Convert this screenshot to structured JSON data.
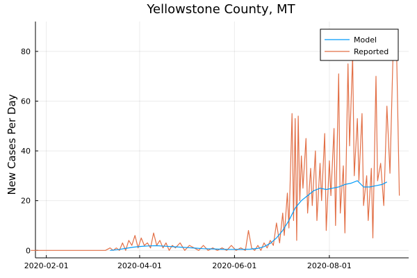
{
  "chart_data": {
    "type": "line",
    "title": "Yellowstone County, MT",
    "xlabel": "",
    "ylabel": "New Cases Per Day",
    "x_axis": "date",
    "xlim": [
      "2020-01-25",
      "2020-09-21"
    ],
    "ylim": [
      -3,
      92
    ],
    "x_ticks": [
      "2020-02-01",
      "2020-04-01",
      "2020-06-01",
      "2020-08-01"
    ],
    "y_ticks": [
      0,
      20,
      40,
      60,
      80
    ],
    "grid": true,
    "legend_position": "top-right",
    "series": [
      {
        "name": "Model",
        "color": "#009af9",
        "points": [
          [
            "2020-03-13",
            0
          ],
          [
            "2020-03-18",
            0.3
          ],
          [
            "2020-03-23",
            0.8
          ],
          [
            "2020-03-28",
            1.3
          ],
          [
            "2020-04-02",
            1.6
          ],
          [
            "2020-04-07",
            1.8
          ],
          [
            "2020-04-12",
            1.9
          ],
          [
            "2020-04-17",
            1.7
          ],
          [
            "2020-04-22",
            1.5
          ],
          [
            "2020-04-27",
            1.3
          ],
          [
            "2020-05-02",
            1.1
          ],
          [
            "2020-05-07",
            0.9
          ],
          [
            "2020-05-12",
            0.7
          ],
          [
            "2020-05-17",
            0.6
          ],
          [
            "2020-05-22",
            0.5
          ],
          [
            "2020-05-27",
            0.4
          ],
          [
            "2020-06-01",
            0.4
          ],
          [
            "2020-06-06",
            0.4
          ],
          [
            "2020-06-11",
            0.5
          ],
          [
            "2020-06-16",
            0.8
          ],
          [
            "2020-06-20",
            1.5
          ],
          [
            "2020-06-24",
            2.8
          ],
          [
            "2020-06-28",
            5
          ],
          [
            "2020-07-02",
            8
          ],
          [
            "2020-07-06",
            12
          ],
          [
            "2020-07-10",
            17
          ],
          [
            "2020-07-14",
            20
          ],
          [
            "2020-07-18",
            22
          ],
          [
            "2020-07-22",
            24
          ],
          [
            "2020-07-26",
            25
          ],
          [
            "2020-07-30",
            24.5
          ],
          [
            "2020-08-03",
            25
          ],
          [
            "2020-08-07",
            25.5
          ],
          [
            "2020-08-11",
            26.5
          ],
          [
            "2020-08-15",
            27
          ],
          [
            "2020-08-19",
            28
          ],
          [
            "2020-08-23",
            25.5
          ],
          [
            "2020-08-27",
            25.5
          ],
          [
            "2020-08-31",
            26
          ],
          [
            "2020-09-04",
            26.5
          ],
          [
            "2020-09-07",
            27.5
          ]
        ]
      },
      {
        "name": "Reported",
        "color": "#e26f46",
        "points": [
          [
            "2020-01-22",
            0
          ],
          [
            "2020-03-10",
            0
          ],
          [
            "2020-03-13",
            1
          ],
          [
            "2020-03-15",
            0
          ],
          [
            "2020-03-17",
            1
          ],
          [
            "2020-03-19",
            0
          ],
          [
            "2020-03-21",
            3
          ],
          [
            "2020-03-23",
            0
          ],
          [
            "2020-03-25",
            4
          ],
          [
            "2020-03-27",
            2
          ],
          [
            "2020-03-29",
            6
          ],
          [
            "2020-03-31",
            1
          ],
          [
            "2020-04-02",
            5
          ],
          [
            "2020-04-04",
            2
          ],
          [
            "2020-04-06",
            3
          ],
          [
            "2020-04-08",
            1
          ],
          [
            "2020-04-10",
            7
          ],
          [
            "2020-04-12",
            2
          ],
          [
            "2020-04-14",
            4
          ],
          [
            "2020-04-16",
            1
          ],
          [
            "2020-04-18",
            3
          ],
          [
            "2020-04-20",
            0
          ],
          [
            "2020-04-22",
            2
          ],
          [
            "2020-04-24",
            1
          ],
          [
            "2020-04-27",
            3
          ],
          [
            "2020-04-30",
            0
          ],
          [
            "2020-05-03",
            2
          ],
          [
            "2020-05-06",
            1
          ],
          [
            "2020-05-09",
            0
          ],
          [
            "2020-05-12",
            2
          ],
          [
            "2020-05-15",
            0
          ],
          [
            "2020-05-18",
            1
          ],
          [
            "2020-05-21",
            0
          ],
          [
            "2020-05-24",
            1
          ],
          [
            "2020-05-27",
            0
          ],
          [
            "2020-05-30",
            2
          ],
          [
            "2020-06-02",
            0
          ],
          [
            "2020-06-05",
            1
          ],
          [
            "2020-06-08",
            0
          ],
          [
            "2020-06-10",
            8
          ],
          [
            "2020-06-12",
            1
          ],
          [
            "2020-06-14",
            0
          ],
          [
            "2020-06-16",
            2
          ],
          [
            "2020-06-18",
            0
          ],
          [
            "2020-06-20",
            3
          ],
          [
            "2020-06-22",
            1
          ],
          [
            "2020-06-24",
            4
          ],
          [
            "2020-06-26",
            2
          ],
          [
            "2020-06-28",
            11
          ],
          [
            "2020-06-30",
            3
          ],
          [
            "2020-07-02",
            15
          ],
          [
            "2020-07-03",
            6
          ],
          [
            "2020-07-05",
            23
          ],
          [
            "2020-07-06",
            9
          ],
          [
            "2020-07-08",
            55
          ],
          [
            "2020-07-09",
            12
          ],
          [
            "2020-07-10",
            53
          ],
          [
            "2020-07-11",
            4
          ],
          [
            "2020-07-12",
            54
          ],
          [
            "2020-07-13",
            20
          ],
          [
            "2020-07-14",
            38
          ],
          [
            "2020-07-15",
            25
          ],
          [
            "2020-07-17",
            45
          ],
          [
            "2020-07-18",
            15
          ],
          [
            "2020-07-20",
            33
          ],
          [
            "2020-07-21",
            18
          ],
          [
            "2020-07-23",
            40
          ],
          [
            "2020-07-24",
            12
          ],
          [
            "2020-07-26",
            35
          ],
          [
            "2020-07-27",
            20
          ],
          [
            "2020-07-29",
            47
          ],
          [
            "2020-07-30",
            8
          ],
          [
            "2020-08-01",
            36
          ],
          [
            "2020-08-02",
            22
          ],
          [
            "2020-08-04",
            49
          ],
          [
            "2020-08-05",
            10
          ],
          [
            "2020-08-07",
            71
          ],
          [
            "2020-08-08",
            15
          ],
          [
            "2020-08-10",
            34
          ],
          [
            "2020-08-11",
            7
          ],
          [
            "2020-08-13",
            75
          ],
          [
            "2020-08-14",
            42
          ],
          [
            "2020-08-16",
            78
          ],
          [
            "2020-08-17",
            30
          ],
          [
            "2020-08-19",
            53
          ],
          [
            "2020-08-20",
            28
          ],
          [
            "2020-08-22",
            55
          ],
          [
            "2020-08-23",
            18
          ],
          [
            "2020-08-25",
            30
          ],
          [
            "2020-08-26",
            12
          ],
          [
            "2020-08-28",
            33
          ],
          [
            "2020-08-29",
            5
          ],
          [
            "2020-08-31",
            70
          ],
          [
            "2020-09-01",
            28
          ],
          [
            "2020-09-03",
            35
          ],
          [
            "2020-09-05",
            18
          ],
          [
            "2020-09-07",
            58
          ],
          [
            "2020-09-09",
            31
          ],
          [
            "2020-09-11",
            80
          ],
          [
            "2020-09-13",
            88
          ],
          [
            "2020-09-15",
            22
          ]
        ]
      }
    ]
  }
}
